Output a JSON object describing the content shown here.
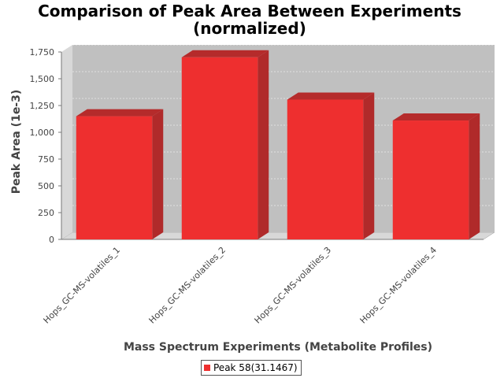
{
  "chart_data": {
    "type": "bar",
    "title": [
      "Comparison of Peak Area Between Experiments",
      "(normalized)"
    ],
    "xlabel": "Mass Spectrum Experiments (Metabolite Profiles)",
    "ylabel": "Peak Area (1e-3)",
    "categories": [
      "Hops_GC-MS-volatiles_1",
      "Hops_GC-MS-volatiles_2",
      "Hops_GC-MS-volatiles_3",
      "Hops_GC-MS-volatiles_4"
    ],
    "series": [
      {
        "name": "Peak 58(31.1467)",
        "values": [
          1150,
          1700,
          1305,
          1110
        ]
      }
    ],
    "ylim": [
      0,
      1750
    ],
    "yticks": [
      "0",
      "250",
      "500",
      "750",
      "1,000",
      "1,250",
      "1,500",
      "1,750"
    ],
    "grid": true,
    "legend_position": "bottom",
    "bar_color": "#EE2F2F",
    "plot_background": "#C0C0C0"
  }
}
